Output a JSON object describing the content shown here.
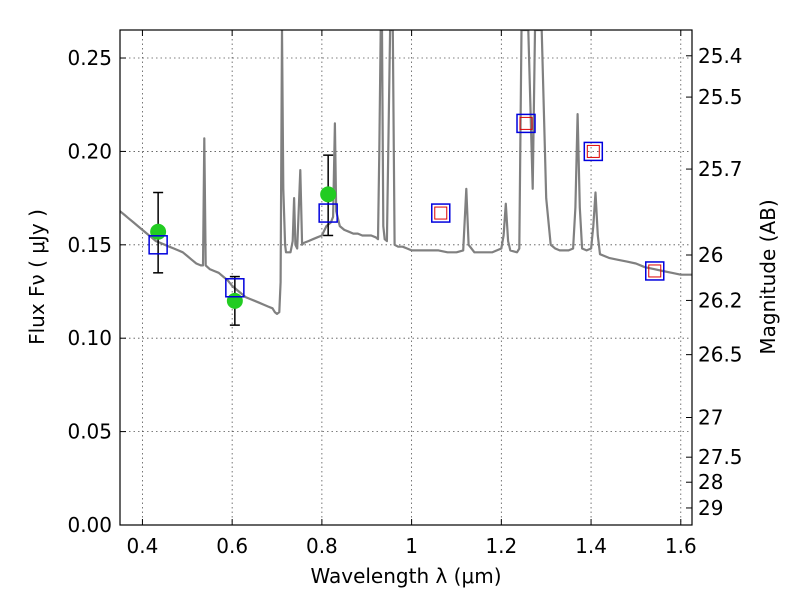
{
  "chart_data": {
    "type": "scatter",
    "title": "",
    "xlabel": "Wavelength  λ (μm)",
    "ylabel": "Flux  Fν  ( μJy )",
    "y2label": "Magnitude (AB)",
    "xlim": [
      0.35,
      1.625
    ],
    "ylim": [
      0.0,
      0.265
    ],
    "grid": true,
    "x_ticks": [
      0.4,
      0.6,
      0.8,
      1.0,
      1.2,
      1.4,
      1.6
    ],
    "x_tick_labels": [
      "0.4",
      "0.6",
      "0.8",
      "1",
      "1.2",
      "1.4",
      "1.6"
    ],
    "y_ticks": [
      0.0,
      0.05,
      0.1,
      0.15,
      0.2,
      0.25
    ],
    "y_tick_labels": [
      "0.00",
      "0.05",
      "0.10",
      "0.15",
      "0.20",
      "0.25"
    ],
    "y2_ticks": [
      25.4,
      25.5,
      25.7,
      26,
      26.2,
      26.5,
      27,
      27.5,
      28,
      29
    ],
    "y2_tick_labels": [
      "25.4",
      "25.5",
      "25.7",
      "26",
      "26.2",
      "26.5",
      "27",
      "27.5",
      "28",
      "29"
    ],
    "colors": {
      "template": "#808080",
      "observed": "#22cc22",
      "model_box": "#0000dd",
      "model_inner": "#dd0000",
      "errorbar": "#000000"
    },
    "series": [
      {
        "kind": "spectrum",
        "points": [
          [
            0.35,
            0.168
          ],
          [
            0.36,
            0.166
          ],
          [
            0.37,
            0.164
          ],
          [
            0.38,
            0.162
          ],
          [
            0.39,
            0.16
          ],
          [
            0.4,
            0.158
          ],
          [
            0.41,
            0.156
          ],
          [
            0.42,
            0.154
          ],
          [
            0.43,
            0.152
          ],
          [
            0.44,
            0.151
          ],
          [
            0.45,
            0.15
          ],
          [
            0.46,
            0.149
          ],
          [
            0.47,
            0.148
          ],
          [
            0.48,
            0.147
          ],
          [
            0.49,
            0.146
          ],
          [
            0.5,
            0.144
          ],
          [
            0.51,
            0.142
          ],
          [
            0.52,
            0.14
          ],
          [
            0.53,
            0.139
          ],
          [
            0.535,
            0.139
          ],
          [
            0.538,
            0.207
          ],
          [
            0.541,
            0.139
          ],
          [
            0.55,
            0.137
          ],
          [
            0.56,
            0.136
          ],
          [
            0.57,
            0.135
          ],
          [
            0.58,
            0.133
          ],
          [
            0.59,
            0.131
          ],
          [
            0.6,
            0.128
          ],
          [
            0.61,
            0.126
          ],
          [
            0.62,
            0.124
          ],
          [
            0.63,
            0.122
          ],
          [
            0.64,
            0.121
          ],
          [
            0.65,
            0.12
          ],
          [
            0.66,
            0.119
          ],
          [
            0.67,
            0.118
          ],
          [
            0.68,
            0.117
          ],
          [
            0.69,
            0.116
          ],
          [
            0.695,
            0.114
          ],
          [
            0.7,
            0.113
          ],
          [
            0.705,
            0.114
          ],
          [
            0.708,
            0.13
          ],
          [
            0.711,
            0.265
          ],
          [
            0.714,
            0.18
          ],
          [
            0.718,
            0.15
          ],
          [
            0.72,
            0.146
          ],
          [
            0.73,
            0.146
          ],
          [
            0.735,
            0.152
          ],
          [
            0.738,
            0.175
          ],
          [
            0.741,
            0.15
          ],
          [
            0.745,
            0.148
          ],
          [
            0.752,
            0.19
          ],
          [
            0.756,
            0.15
          ],
          [
            0.76,
            0.151
          ],
          [
            0.77,
            0.152
          ],
          [
            0.78,
            0.153
          ],
          [
            0.79,
            0.154
          ],
          [
            0.8,
            0.155
          ],
          [
            0.81,
            0.16
          ],
          [
            0.82,
            0.162
          ],
          [
            0.825,
            0.165
          ],
          [
            0.829,
            0.215
          ],
          [
            0.832,
            0.168
          ],
          [
            0.84,
            0.16
          ],
          [
            0.85,
            0.158
          ],
          [
            0.86,
            0.157
          ],
          [
            0.87,
            0.156
          ],
          [
            0.88,
            0.156
          ],
          [
            0.89,
            0.155
          ],
          [
            0.9,
            0.155
          ],
          [
            0.91,
            0.155
          ],
          [
            0.92,
            0.154
          ],
          [
            0.925,
            0.153
          ],
          [
            0.928,
            0.2
          ],
          [
            0.931,
            0.265
          ],
          [
            0.934,
            0.265
          ],
          [
            0.937,
            0.16
          ],
          [
            0.94,
            0.153
          ],
          [
            0.945,
            0.152
          ],
          [
            0.952,
            0.265
          ],
          [
            0.958,
            0.265
          ],
          [
            0.962,
            0.15
          ],
          [
            0.97,
            0.149
          ],
          [
            0.98,
            0.149
          ],
          [
            0.99,
            0.148
          ],
          [
            1.0,
            0.147
          ],
          [
            1.02,
            0.147
          ],
          [
            1.04,
            0.147
          ],
          [
            1.06,
            0.147
          ],
          [
            1.08,
            0.146
          ],
          [
            1.1,
            0.146
          ],
          [
            1.115,
            0.147
          ],
          [
            1.122,
            0.18
          ],
          [
            1.127,
            0.15
          ],
          [
            1.14,
            0.146
          ],
          [
            1.16,
            0.146
          ],
          [
            1.18,
            0.146
          ],
          [
            1.2,
            0.148
          ],
          [
            1.205,
            0.155
          ],
          [
            1.21,
            0.172
          ],
          [
            1.215,
            0.152
          ],
          [
            1.22,
            0.147
          ],
          [
            1.235,
            0.146
          ],
          [
            1.24,
            0.148
          ],
          [
            1.245,
            0.265
          ],
          [
            1.26,
            0.265
          ],
          [
            1.27,
            0.18
          ],
          [
            1.275,
            0.265
          ],
          [
            1.29,
            0.265
          ],
          [
            1.3,
            0.175
          ],
          [
            1.31,
            0.15
          ],
          [
            1.32,
            0.148
          ],
          [
            1.33,
            0.147
          ],
          [
            1.34,
            0.147
          ],
          [
            1.35,
            0.147
          ],
          [
            1.36,
            0.148
          ],
          [
            1.365,
            0.17
          ],
          [
            1.37,
            0.22
          ],
          [
            1.375,
            0.17
          ],
          [
            1.38,
            0.148
          ],
          [
            1.39,
            0.147
          ],
          [
            1.4,
            0.148
          ],
          [
            1.405,
            0.16
          ],
          [
            1.41,
            0.178
          ],
          [
            1.415,
            0.155
          ],
          [
            1.42,
            0.145
          ],
          [
            1.44,
            0.143
          ],
          [
            1.46,
            0.142
          ],
          [
            1.48,
            0.141
          ],
          [
            1.5,
            0.14
          ],
          [
            1.52,
            0.138
          ],
          [
            1.54,
            0.137
          ],
          [
            1.56,
            0.136
          ],
          [
            1.58,
            0.135
          ],
          [
            1.6,
            0.134
          ],
          [
            1.625,
            0.134
          ]
        ]
      },
      {
        "kind": "observed",
        "points": [
          {
            "x": 0.435,
            "y": 0.157,
            "yerr_low": 0.135,
            "yerr_high": 0.178
          },
          {
            "x": 0.606,
            "y": 0.12,
            "yerr_low": 0.107,
            "yerr_high": 0.133
          },
          {
            "x": 0.814,
            "y": 0.177,
            "yerr_low": 0.155,
            "yerr_high": 0.198
          }
        ]
      },
      {
        "kind": "model",
        "points": [
          {
            "x": 0.435,
            "y": 0.15,
            "inner": false
          },
          {
            "x": 0.606,
            "y": 0.127,
            "inner": false
          },
          {
            "x": 0.814,
            "y": 0.167,
            "inner": false
          },
          {
            "x": 1.065,
            "y": 0.167,
            "inner": true
          },
          {
            "x": 1.255,
            "y": 0.215,
            "inner": true
          },
          {
            "x": 1.405,
            "y": 0.2,
            "inner": true
          },
          {
            "x": 1.542,
            "y": 0.136,
            "inner": true
          }
        ]
      }
    ]
  }
}
